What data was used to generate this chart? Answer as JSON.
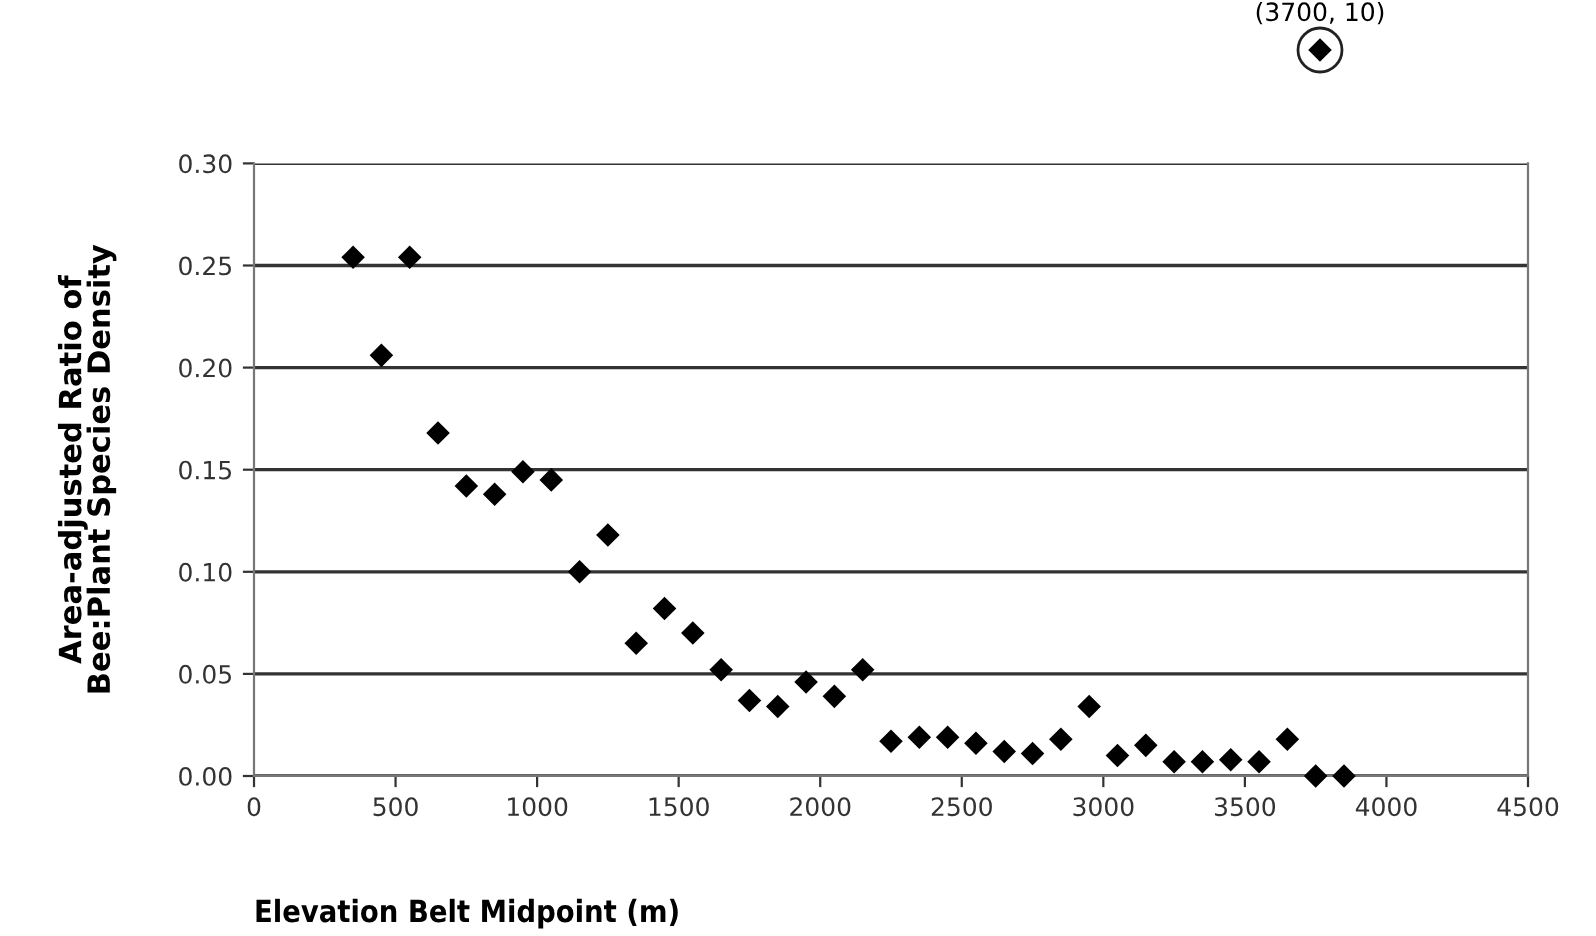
{
  "chart_data": {
    "type": "scatter",
    "xlabel": "Elevation Belt Midpoint (m)",
    "ylabel": "Area-adjusted Ratio of\nBee:Plant Species Density",
    "x": [
      350,
      450,
      550,
      650,
      750,
      850,
      950,
      1050,
      1150,
      1250,
      1350,
      1450,
      1550,
      1650,
      1750,
      1850,
      1950,
      2050,
      2150,
      2250,
      2350,
      2450,
      2550,
      2650,
      2750,
      2850,
      2950,
      3050,
      3150,
      3250,
      3350,
      3450,
      3550,
      3650,
      3750,
      3850
    ],
    "values": [
      0.254,
      0.206,
      0.254,
      0.168,
      0.142,
      0.138,
      0.149,
      0.145,
      0.1,
      0.118,
      0.065,
      0.082,
      0.07,
      0.052,
      0.037,
      0.034,
      0.046,
      0.039,
      0.052,
      0.017,
      0.019,
      0.019,
      0.016,
      0.012,
      0.011,
      0.018,
      0.034,
      0.01,
      0.015,
      0.007,
      0.007,
      0.008,
      0.007,
      0.018,
      0,
      0
    ],
    "color": "#000000",
    "marker": "diamond",
    "xlim": [
      0,
      4500
    ],
    "xticks": [
      0,
      500,
      1000,
      1500,
      2000,
      2500,
      3000,
      3500,
      4000,
      4500
    ],
    "ylim": [
      0,
      0.3
    ],
    "yticks": [
      {
        "value": 0,
        "label": "0.00"
      },
      {
        "value": 0.05,
        "label": "0.05"
      },
      {
        "value": 0.1,
        "label": "0.10"
      },
      {
        "value": 0.15,
        "label": "0.15"
      },
      {
        "value": 0.2,
        "label": "0.20"
      },
      {
        "value": 0.25,
        "label": "0.25"
      },
      {
        "value": 0.3,
        "label": "0.30"
      }
    ],
    "grid": "y",
    "legend": false,
    "annotations": [
      "(3700, 10)"
    ]
  }
}
